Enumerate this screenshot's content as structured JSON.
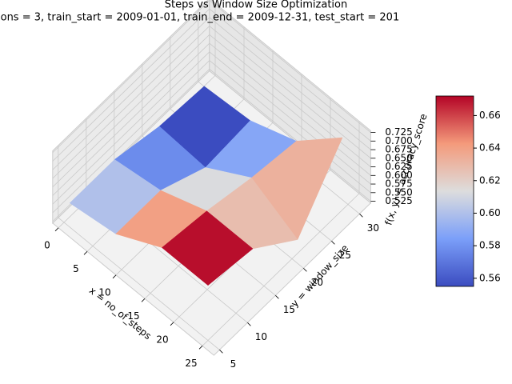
{
  "chart_data": {
    "type": "surface",
    "title": "Steps vs Window Size Optimization",
    "subtitle": "ions = 3, train_start = 2009-01-01, train_end = 2009-12-31, test_start = 201",
    "x_label": "x = no_of_steps",
    "y_label": "y = window_size",
    "z_label": "f(x, y) = accuracy_score",
    "x": [
      1,
      9,
      17,
      25
    ],
    "y": [
      5,
      13,
      21,
      29
    ],
    "z": [
      [
        0.59,
        0.59,
        0.56,
        0.55
      ],
      [
        0.61,
        0.61,
        0.55,
        0.56
      ],
      [
        0.68,
        0.66,
        0.63,
        0.61
      ],
      [
        0.68,
        0.66,
        0.56,
        0.73
      ]
    ],
    "xlim": [
      -1,
      27
    ],
    "ylim": [
      4,
      32
    ],
    "zlim": [
      0.52,
      0.73
    ],
    "xticks": [
      0,
      5,
      10,
      15,
      20,
      25
    ],
    "yticks": [
      5,
      10,
      15,
      20,
      25,
      30
    ],
    "zticks": [
      0.525,
      {
        "value": 0.55,
        "label": "0.550"
      },
      0.575,
      {
        "value": 0.6,
        "label": "0.600"
      },
      0.625,
      {
        "value": 0.65,
        "label": "0.650"
      },
      0.675,
      {
        "value": 0.7,
        "label": "0.700"
      },
      0.725
    ],
    "colormap": "coolwarm",
    "colorbar_lim": [
      0.555,
      0.672
    ],
    "colorbar_ticks": [
      0.56,
      0.58,
      {
        "value": 0.6,
        "label": "0.60"
      },
      0.62,
      0.64,
      0.66
    ],
    "grid": true
  }
}
